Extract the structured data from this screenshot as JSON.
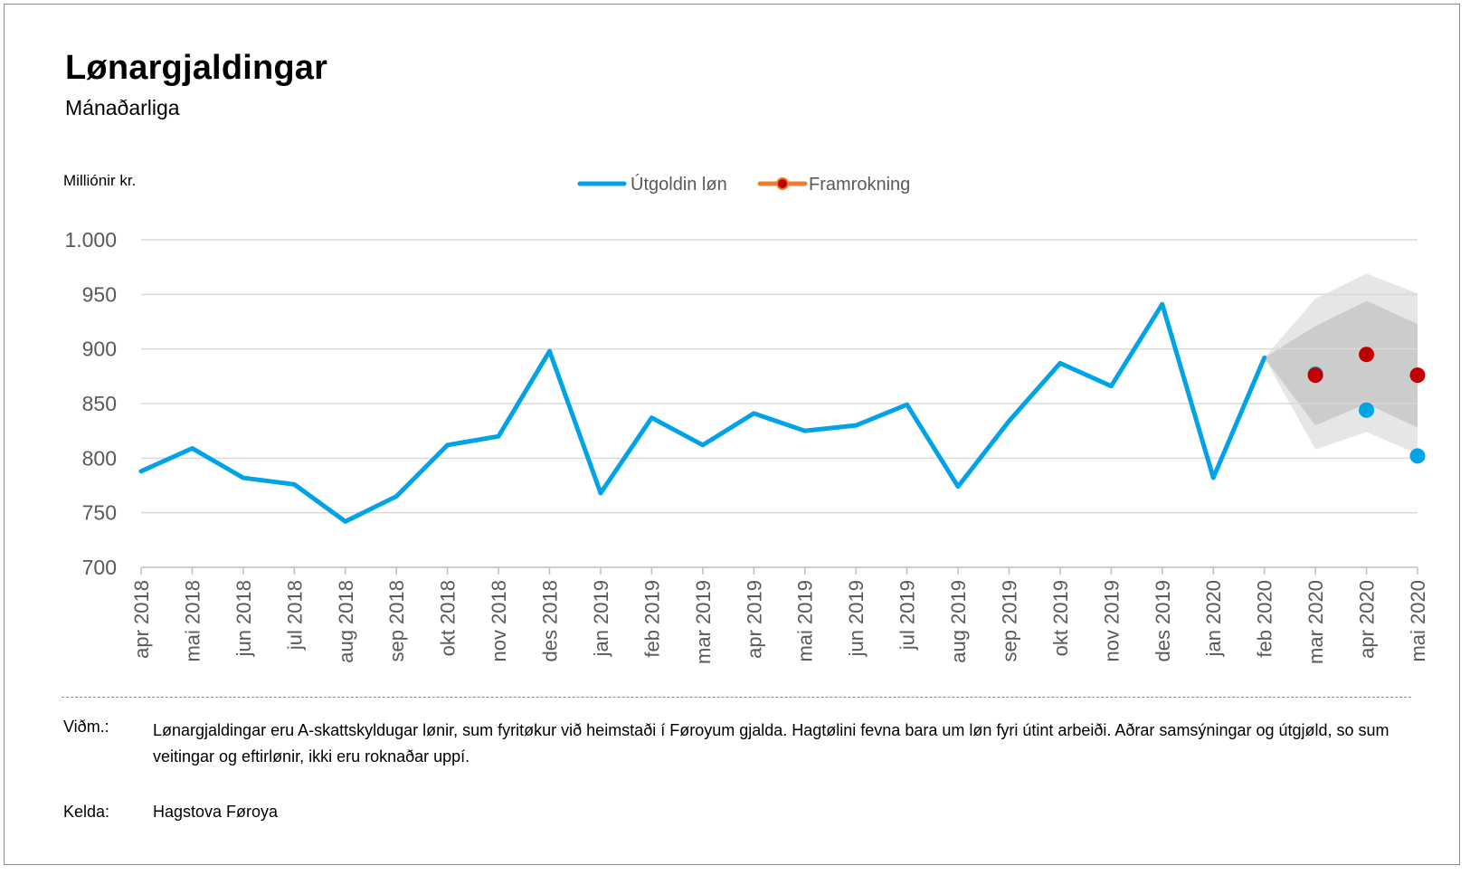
{
  "title": "Lønargjaldingar",
  "subtitle": "Mánaðarliga",
  "unit_label": "Milliónir kr.",
  "note_label": "Viðm.:",
  "note_text": "Lønargjaldingar eru A-skattskyldugar lønir, sum fyritøkur við heimstaði í Føroyum gjalda. Hagtølini fevna bara um løn fyri útint arbeiði. Aðrar samsýningar og útgjøld, so sum veitingar og eftirlønir, ikki eru roknaðar uppí.",
  "source_label": "Kelda:",
  "source_text": "Hagstova Føroya",
  "chart_data": {
    "type": "line",
    "categories": [
      "apr 2018",
      "mai 2018",
      "jun 2018",
      "jul 2018",
      "aug 2018",
      "sep 2018",
      "okt 2018",
      "nov 2018",
      "des 2018",
      "jan 2019",
      "feb 2019",
      "mar 2019",
      "apr 2019",
      "mai 2019",
      "jun 2019",
      "jul 2019",
      "aug 2019",
      "sep 2019",
      "okt 2019",
      "nov 2019",
      "des 2019",
      "jan 2020",
      "feb 2020",
      "mar 2020",
      "apr 2020",
      "mai 2020"
    ],
    "ylim": [
      700,
      1000
    ],
    "yticks": [
      700,
      750,
      800,
      850,
      900,
      950,
      1000
    ],
    "ytick_labels": [
      "700",
      "750",
      "800",
      "850",
      "900",
      "950",
      "1.000"
    ],
    "grid": true,
    "legend_position": "top-center",
    "series": [
      {
        "name": "Útgoldin løn",
        "color": "#00a2e8",
        "values": [
          788,
          809,
          782,
          776,
          742,
          765,
          812,
          820,
          898,
          768,
          837,
          812,
          841,
          825,
          830,
          849,
          774,
          834,
          887,
          866,
          941,
          782,
          892,
          null,
          null,
          null
        ],
        "extra_points": [
          {
            "x": "mar 2020",
            "y": 877
          },
          {
            "x": "apr 2020",
            "y": 844
          },
          {
            "x": "mai 2020",
            "y": 802
          }
        ]
      },
      {
        "name": "Framrokning",
        "color": "#c00000",
        "legend_line_color": "#ed7d31",
        "points": [
          {
            "x": "mar 2020",
            "y": 876
          },
          {
            "x": "apr 2020",
            "y": 895
          },
          {
            "x": "mai 2020",
            "y": 876
          }
        ]
      }
    ],
    "forecast_bands": [
      {
        "color": "#e6e6e6",
        "x": [
          "feb 2020",
          "mar 2020",
          "apr 2020",
          "mai 2020"
        ],
        "lower": [
          892,
          808,
          824,
          804
        ],
        "upper": [
          892,
          946,
          969,
          951
        ]
      },
      {
        "color": "#cccccc",
        "x": [
          "feb 2020",
          "mar 2020",
          "apr 2020",
          "mai 2020"
        ],
        "lower": [
          892,
          830,
          850,
          828
        ],
        "upper": [
          892,
          921,
          944,
          923
        ]
      }
    ]
  }
}
